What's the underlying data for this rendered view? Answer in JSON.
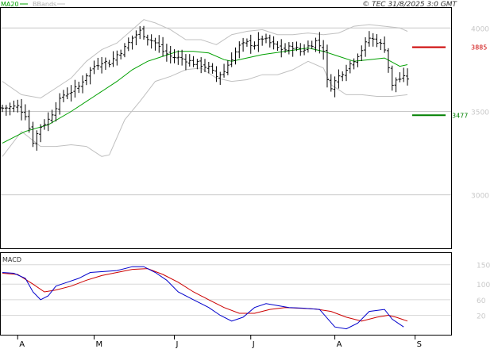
{
  "header": {
    "legend_ma": "MA20",
    "legend_bb": "BBands",
    "copyright": "© TEC 31/8/2025 3:0 GMT"
  },
  "colors": {
    "price": "#000000",
    "ma20": "#00a000",
    "bbands": "#c0c0c0",
    "resistance": "#cc0000",
    "support": "#008000",
    "macd": "#0000cc",
    "signal": "#cc0000"
  },
  "chart_data": [
    {
      "type": "ohlc",
      "name": "price",
      "ylim": [
        2680,
        4120
      ],
      "y_ticks": [
        3000,
        3500,
        4000
      ],
      "y_tick_labels": [
        "3000",
        "3500",
        "4000"
      ],
      "x_months": [
        {
          "label": "A",
          "index": 4
        },
        {
          "label": "M",
          "index": 24
        },
        {
          "label": "J",
          "index": 45
        },
        {
          "label": "J",
          "index": 65
        },
        {
          "label": "A",
          "index": 87
        },
        {
          "label": "S",
          "index": 108
        }
      ],
      "n_bars": 107,
      "close_points": [
        [
          0,
          3520
        ],
        [
          4,
          3530
        ],
        [
          6,
          3480
        ],
        [
          8,
          3320
        ],
        [
          10,
          3410
        ],
        [
          12,
          3450
        ],
        [
          14,
          3530
        ],
        [
          16,
          3600
        ],
        [
          18,
          3620
        ],
        [
          20,
          3650
        ],
        [
          22,
          3720
        ],
        [
          24,
          3770
        ],
        [
          26,
          3800
        ],
        [
          28,
          3790
        ],
        [
          30,
          3840
        ],
        [
          32,
          3880
        ],
        [
          34,
          3940
        ],
        [
          36,
          3980
        ],
        [
          38,
          3940
        ],
        [
          40,
          3910
        ],
        [
          42,
          3860
        ],
        [
          44,
          3830
        ],
        [
          46,
          3820
        ],
        [
          48,
          3810
        ],
        [
          50,
          3790
        ],
        [
          52,
          3780
        ],
        [
          54,
          3760
        ],
        [
          56,
          3710
        ],
        [
          58,
          3740
        ],
        [
          60,
          3820
        ],
        [
          62,
          3890
        ],
        [
          64,
          3910
        ],
        [
          66,
          3900
        ],
        [
          68,
          3940
        ],
        [
          70,
          3910
        ],
        [
          72,
          3880
        ],
        [
          74,
          3870
        ],
        [
          76,
          3890
        ],
        [
          78,
          3860
        ],
        [
          80,
          3890
        ],
        [
          82,
          3920
        ],
        [
          84,
          3870
        ],
        [
          85,
          3680
        ],
        [
          86,
          3650
        ],
        [
          88,
          3710
        ],
        [
          90,
          3760
        ],
        [
          92,
          3810
        ],
        [
          94,
          3870
        ],
        [
          96,
          3940
        ],
        [
          98,
          3920
        ],
        [
          100,
          3880
        ],
        [
          102,
          3650
        ],
        [
          103,
          3690
        ],
        [
          105,
          3700
        ]
      ],
      "ma20_points": [
        [
          0,
          3310
        ],
        [
          6,
          3380
        ],
        [
          12,
          3420
        ],
        [
          18,
          3500
        ],
        [
          24,
          3590
        ],
        [
          30,
          3680
        ],
        [
          34,
          3750
        ],
        [
          38,
          3800
        ],
        [
          42,
          3830
        ],
        [
          46,
          3860
        ],
        [
          50,
          3860
        ],
        [
          54,
          3850
        ],
        [
          58,
          3810
        ],
        [
          60,
          3800
        ],
        [
          64,
          3820
        ],
        [
          68,
          3840
        ],
        [
          74,
          3860
        ],
        [
          80,
          3880
        ],
        [
          84,
          3860
        ],
        [
          88,
          3830
        ],
        [
          92,
          3800
        ],
        [
          96,
          3810
        ],
        [
          100,
          3820
        ],
        [
          104,
          3770
        ],
        [
          106,
          3780
        ]
      ],
      "bb_upper_points": [
        [
          0,
          3680
        ],
        [
          5,
          3600
        ],
        [
          10,
          3580
        ],
        [
          14,
          3640
        ],
        [
          18,
          3700
        ],
        [
          22,
          3800
        ],
        [
          26,
          3870
        ],
        [
          30,
          3910
        ],
        [
          34,
          3990
        ],
        [
          37,
          4050
        ],
        [
          40,
          4030
        ],
        [
          44,
          3990
        ],
        [
          48,
          3930
        ],
        [
          52,
          3930
        ],
        [
          56,
          3900
        ],
        [
          60,
          3960
        ],
        [
          64,
          3980
        ],
        [
          68,
          3990
        ],
        [
          72,
          3960
        ],
        [
          76,
          3960
        ],
        [
          80,
          3970
        ],
        [
          84,
          3960
        ],
        [
          88,
          3970
        ],
        [
          92,
          4010
        ],
        [
          96,
          4020
        ],
        [
          100,
          4010
        ],
        [
          104,
          4000
        ],
        [
          106,
          3980
        ]
      ],
      "bb_lower_points": [
        [
          0,
          3230
        ],
        [
          5,
          3380
        ],
        [
          10,
          3290
        ],
        [
          14,
          3290
        ],
        [
          18,
          3300
        ],
        [
          22,
          3290
        ],
        [
          26,
          3230
        ],
        [
          28,
          3240
        ],
        [
          32,
          3450
        ],
        [
          36,
          3560
        ],
        [
          40,
          3680
        ],
        [
          44,
          3710
        ],
        [
          48,
          3750
        ],
        [
          52,
          3760
        ],
        [
          56,
          3700
        ],
        [
          60,
          3680
        ],
        [
          64,
          3690
        ],
        [
          68,
          3720
        ],
        [
          72,
          3720
        ],
        [
          76,
          3750
        ],
        [
          80,
          3800
        ],
        [
          84,
          3760
        ],
        [
          86,
          3660
        ],
        [
          90,
          3600
        ],
        [
          94,
          3600
        ],
        [
          98,
          3590
        ],
        [
          102,
          3590
        ],
        [
          106,
          3600
        ]
      ],
      "resistance": {
        "value": 3885,
        "label": "3885"
      },
      "support": {
        "value": 3477,
        "label": "3477"
      }
    },
    {
      "type": "line",
      "name": "MACD",
      "ylim": [
        -30,
        180
      ],
      "y_ticks": [
        20,
        60,
        100,
        150
      ],
      "y_tick_labels": [
        "20",
        "60",
        "100",
        "150"
      ],
      "macd_points": [
        [
          0,
          130
        ],
        [
          3,
          128
        ],
        [
          6,
          115
        ],
        [
          8,
          80
        ],
        [
          10,
          60
        ],
        [
          12,
          70
        ],
        [
          14,
          95
        ],
        [
          17,
          105
        ],
        [
          20,
          115
        ],
        [
          23,
          130
        ],
        [
          26,
          132
        ],
        [
          30,
          135
        ],
        [
          34,
          145
        ],
        [
          37,
          145
        ],
        [
          40,
          130
        ],
        [
          43,
          110
        ],
        [
          46,
          80
        ],
        [
          50,
          60
        ],
        [
          54,
          40
        ],
        [
          57,
          20
        ],
        [
          60,
          5
        ],
        [
          63,
          15
        ],
        [
          66,
          40
        ],
        [
          69,
          50
        ],
        [
          72,
          45
        ],
        [
          75,
          40
        ],
        [
          79,
          38
        ],
        [
          83,
          35
        ],
        [
          87,
          -10
        ],
        [
          90,
          -15
        ],
        [
          93,
          0
        ],
        [
          96,
          30
        ],
        [
          100,
          35
        ],
        [
          102,
          10
        ],
        [
          105,
          -10
        ]
      ],
      "signal_points": [
        [
          0,
          128
        ],
        [
          4,
          125
        ],
        [
          8,
          100
        ],
        [
          11,
          80
        ],
        [
          14,
          85
        ],
        [
          18,
          95
        ],
        [
          22,
          110
        ],
        [
          26,
          122
        ],
        [
          30,
          130
        ],
        [
          34,
          138
        ],
        [
          38,
          140
        ],
        [
          42,
          125
        ],
        [
          46,
          105
        ],
        [
          50,
          80
        ],
        [
          54,
          60
        ],
        [
          58,
          40
        ],
        [
          62,
          25
        ],
        [
          66,
          25
        ],
        [
          70,
          35
        ],
        [
          74,
          40
        ],
        [
          78,
          38
        ],
        [
          82,
          36
        ],
        [
          86,
          30
        ],
        [
          90,
          15
        ],
        [
          94,
          5
        ],
        [
          98,
          15
        ],
        [
          101,
          20
        ],
        [
          103,
          15
        ],
        [
          106,
          5
        ]
      ]
    }
  ]
}
